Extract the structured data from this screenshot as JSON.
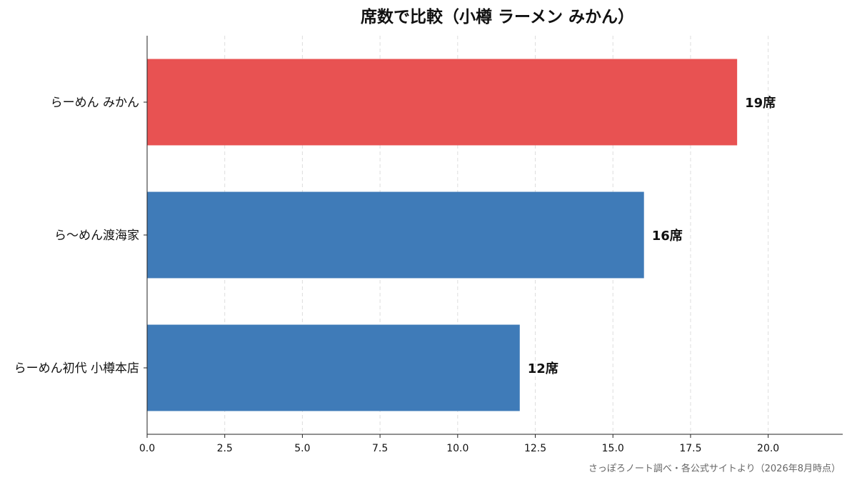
{
  "chart_data": {
    "type": "bar",
    "orientation": "horizontal",
    "title": "席数で比較（小樽 ラーメン みかん）",
    "categories": [
      "らーめん みかん",
      "ら〜めん渡海家",
      "らーめん初代 小樽本店"
    ],
    "values": [
      19,
      16,
      12
    ],
    "value_labels": [
      "19席",
      "16席",
      "12席"
    ],
    "bar_colors": [
      "#e85252",
      "#3f7bb8",
      "#3f7bb8"
    ],
    "xlim": [
      0,
      22.4
    ],
    "xticks": [
      0.0,
      2.5,
      5.0,
      7.5,
      10.0,
      12.5,
      15.0,
      17.5,
      20.0
    ],
    "xtick_labels": [
      "0.0",
      "2.5",
      "5.0",
      "7.5",
      "10.0",
      "12.5",
      "15.0",
      "17.5",
      "20.0"
    ],
    "grid": "vertical dashed",
    "xlabel": "",
    "ylabel": ""
  },
  "source_note": "さっぽろノート調べ・各公式サイトより（2026年8月時点）"
}
